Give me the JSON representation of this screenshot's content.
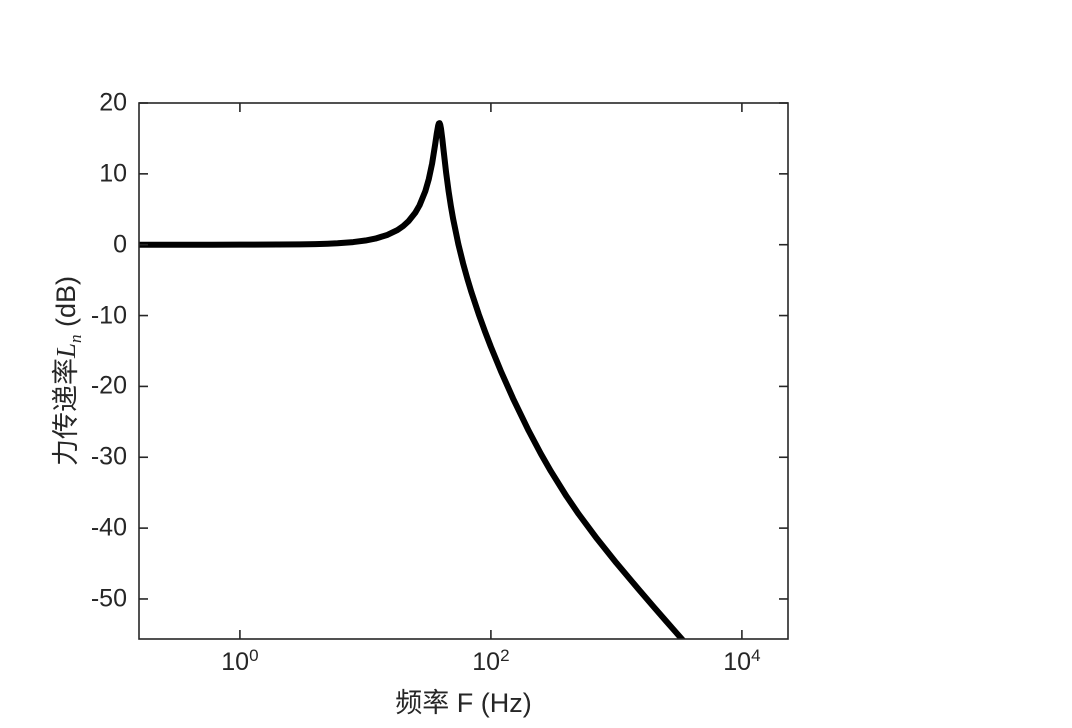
{
  "figure": {
    "background_color": "#ffffff",
    "axes_color": "#262626",
    "curve_color": "#000000"
  },
  "chart_data": {
    "type": "line",
    "title": "",
    "xlabel": "频率 F (Hz)",
    "ylabel": "力传递率Lₙ (dB)",
    "ylabel_parts": {
      "prefix": "力传递率",
      "symbol": "L",
      "subscript": "n",
      "suffix": " (dB)"
    },
    "x_scale": "log",
    "y_scale": "linear",
    "xlim": [
      0.157,
      23300
    ],
    "ylim": [
      -55.65,
      20
    ],
    "grid": false,
    "legend": null,
    "xticks": [
      {
        "value": 1,
        "base": "10",
        "exp": "0"
      },
      {
        "value": 100,
        "base": "10",
        "exp": "2"
      },
      {
        "value": 10000,
        "base": "10",
        "exp": "4"
      }
    ],
    "yticks": [
      {
        "value": 20,
        "label": "20"
      },
      {
        "value": 10,
        "label": "10"
      },
      {
        "value": 0,
        "label": "0"
      },
      {
        "value": -10,
        "label": "-10"
      },
      {
        "value": -20,
        "label": "-20"
      },
      {
        "value": -30,
        "label": "-30"
      },
      {
        "value": -40,
        "label": "-40"
      },
      {
        "value": -50,
        "label": "-50"
      }
    ],
    "curve_description": {
      "shape": "single-DOF vibration force transmissibility",
      "resonance_peak_hz": 39,
      "resonance_peak_db": 17.2,
      "damping_ratio_estimate": 0.07,
      "low_freq_level_db": 0,
      "exits_bottom_axis_near_hz": 3400
    },
    "series": [
      {
        "f_hz": [
          0.157,
          0.3,
          0.6,
          1,
          2,
          3,
          4,
          5,
          6,
          8,
          10,
          12,
          15,
          18,
          20,
          22,
          25,
          27,
          30,
          32,
          34,
          36,
          37,
          38,
          38.5,
          39,
          39.5,
          40,
          41,
          42,
          44,
          46,
          48,
          50,
          55,
          60,
          65,
          70,
          80,
          90,
          100,
          120,
          150,
          200,
          250,
          300,
          400,
          500,
          700,
          1000,
          1500,
          2000,
          2500,
          3000,
          3500,
          4000
        ],
        "L_db": [
          0,
          0,
          0,
          0.01,
          0.02,
          0.05,
          0.09,
          0.14,
          0.21,
          0.37,
          0.59,
          0.86,
          1.39,
          2.07,
          2.63,
          3.3,
          4.53,
          5.56,
          7.54,
          9.27,
          11.46,
          14.21,
          15.66,
          16.82,
          17.13,
          17.16,
          16.91,
          16.41,
          14.94,
          13.26,
          10.13,
          7.56,
          5.43,
          3.64,
          0.09,
          -2.62,
          -4.84,
          -6.72,
          -9.81,
          -12.31,
          -14.42,
          -17.83,
          -21.69,
          -26.26,
          -29.5,
          -31.95,
          -35.5,
          -38.01,
          -41.49,
          -44.92,
          -48.62,
          -51.19,
          -53.16,
          -54.76,
          -56.11,
          -57.28
        ]
      }
    ]
  }
}
